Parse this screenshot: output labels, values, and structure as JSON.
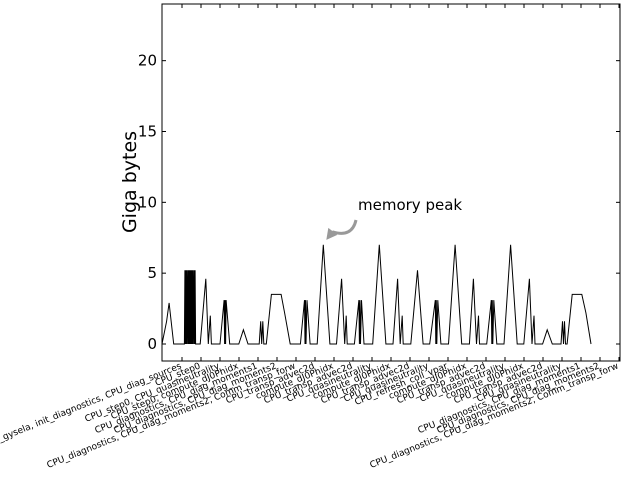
{
  "chart_data": {
    "type": "line",
    "title": "",
    "xlabel": "",
    "ylabel": "Giga bytes",
    "ylim": [
      -1.2,
      24
    ],
    "xlim": [
      0,
      45
    ],
    "yticks": [
      0,
      5,
      10,
      15,
      20
    ],
    "grid": false,
    "legend": "none",
    "color": "#000000",
    "series": [
      {
        "values": [
          [
            0.0,
            0.0
          ],
          [
            0.45,
            1.6
          ],
          [
            0.7,
            2.9
          ],
          [
            1.15,
            0.0
          ],
          [
            2.2,
            0.0
          ],
          [
            2.25,
            5.2
          ],
          [
            2.3,
            0.0
          ],
          [
            2.35,
            5.2
          ],
          [
            2.4,
            0.0
          ],
          [
            2.45,
            5.2
          ],
          [
            2.5,
            0.0
          ],
          [
            2.55,
            5.2
          ],
          [
            2.6,
            0.0
          ],
          [
            2.65,
            5.2
          ],
          [
            2.7,
            0.0
          ],
          [
            2.75,
            5.2
          ],
          [
            2.8,
            0.0
          ],
          [
            2.85,
            5.2
          ],
          [
            2.9,
            0.0
          ],
          [
            2.95,
            5.2
          ],
          [
            3.0,
            0.0
          ],
          [
            3.05,
            5.2
          ],
          [
            3.1,
            0.0
          ],
          [
            3.15,
            5.2
          ],
          [
            3.2,
            0.0
          ],
          [
            3.25,
            5.2
          ],
          [
            3.3,
            0.0
          ],
          [
            3.75,
            0.0
          ],
          [
            4.3,
            4.6
          ],
          [
            4.55,
            0.0
          ],
          [
            4.75,
            2.0
          ],
          [
            4.85,
            0.0
          ],
          [
            5.7,
            0.0
          ],
          [
            6.1,
            3.1
          ],
          [
            6.15,
            0.0
          ],
          [
            6.2,
            3.1
          ],
          [
            6.25,
            0.0
          ],
          [
            6.3,
            3.1
          ],
          [
            6.65,
            0.0
          ],
          [
            7.55,
            0.0
          ],
          [
            8.0,
            1.0
          ],
          [
            8.45,
            0.0
          ],
          [
            9.55,
            0.0
          ],
          [
            9.7,
            1.6
          ],
          [
            9.8,
            0.0
          ],
          [
            9.9,
            1.6
          ],
          [
            10.0,
            0.0
          ],
          [
            10.25,
            0.0
          ],
          [
            10.75,
            3.5
          ],
          [
            11.7,
            3.5
          ],
          [
            12.05,
            2.2
          ],
          [
            12.6,
            0.0
          ],
          [
            13.6,
            0.0
          ],
          [
            14.0,
            3.1
          ],
          [
            14.05,
            0.0
          ],
          [
            14.1,
            3.1
          ],
          [
            14.15,
            0.0
          ],
          [
            14.25,
            3.1
          ],
          [
            14.55,
            0.0
          ],
          [
            15.25,
            0.0
          ],
          [
            15.85,
            7.0
          ],
          [
            16.5,
            0.0
          ],
          [
            17.15,
            0.0
          ],
          [
            17.65,
            4.6
          ],
          [
            17.95,
            0.0
          ],
          [
            18.1,
            2.0
          ],
          [
            18.2,
            0.0
          ],
          [
            18.9,
            0.0
          ],
          [
            19.35,
            3.1
          ],
          [
            19.4,
            0.0
          ],
          [
            19.45,
            3.1
          ],
          [
            19.5,
            0.0
          ],
          [
            19.6,
            3.1
          ],
          [
            19.85,
            0.0
          ],
          [
            20.7,
            0.0
          ],
          [
            21.35,
            7.0
          ],
          [
            22.0,
            0.0
          ],
          [
            22.7,
            0.0
          ],
          [
            23.15,
            4.6
          ],
          [
            23.4,
            0.0
          ],
          [
            23.6,
            2.0
          ],
          [
            23.7,
            0.0
          ],
          [
            24.45,
            0.0
          ],
          [
            25.1,
            5.2
          ],
          [
            25.65,
            0.0
          ],
          [
            26.3,
            0.0
          ],
          [
            26.85,
            3.1
          ],
          [
            26.9,
            0.0
          ],
          [
            26.95,
            3.1
          ],
          [
            27.0,
            0.0
          ],
          [
            27.1,
            3.1
          ],
          [
            27.4,
            0.0
          ],
          [
            28.15,
            0.0
          ],
          [
            28.8,
            7.0
          ],
          [
            29.45,
            0.0
          ],
          [
            30.2,
            0.0
          ],
          [
            30.6,
            4.6
          ],
          [
            30.9,
            0.0
          ],
          [
            31.1,
            2.0
          ],
          [
            31.2,
            0.0
          ],
          [
            31.9,
            0.0
          ],
          [
            32.35,
            3.1
          ],
          [
            32.4,
            0.0
          ],
          [
            32.45,
            3.1
          ],
          [
            32.5,
            0.0
          ],
          [
            32.6,
            3.1
          ],
          [
            32.9,
            0.0
          ],
          [
            33.6,
            0.0
          ],
          [
            34.25,
            7.0
          ],
          [
            34.9,
            0.0
          ],
          [
            35.55,
            0.0
          ],
          [
            36.1,
            4.6
          ],
          [
            36.35,
            0.0
          ],
          [
            36.55,
            2.0
          ],
          [
            36.65,
            0.0
          ],
          [
            37.4,
            0.0
          ],
          [
            37.85,
            1.0
          ],
          [
            38.35,
            0.0
          ],
          [
            39.2,
            0.0
          ],
          [
            39.35,
            1.6
          ],
          [
            39.45,
            0.0
          ],
          [
            39.55,
            1.6
          ],
          [
            39.65,
            0.0
          ],
          [
            39.8,
            0.0
          ],
          [
            40.3,
            3.5
          ],
          [
            41.25,
            3.5
          ],
          [
            41.65,
            2.2
          ],
          [
            42.15,
            0.0
          ]
        ]
      }
    ],
    "x_tick_labels": [
      "Init_gysela, init_diagnostics, CPU_diag_sources",
      "CPU_step0",
      "CPU_step0, CPU_quasineutrality",
      "CPU_step0, compute_dJ0Phidx",
      "CPU_diagnostics, CPU_diag_moments1",
      "CPU_diagnostics, CPU_diag_moments2",
      "CPU_diagnostics, CPU_diag_moments2, Comm_transp_forw",
      "CPU_transp_advec2d",
      "compute_dJ0Phidx",
      "CPU_transp_advec2d",
      "CPU_quasineutrality",
      "compute_dJ0Phidx",
      "CPU_transp_advec2d",
      "CPU_quasineutrality",
      "CPU_refresh_coll_vpar",
      "compute_dJ0Phidx",
      "CPU_transp_advec2d",
      "CPU_quasineutrality",
      "compute_dJ0Phidx",
      "CPU_transp_advec2d",
      "CPU_quasineutrality",
      "CPU_diagnostics, CPU_diag_moments1",
      "CPU_diagnostics, CPU_diag_moments2",
      "CPU_diagnostics, CPU_diag_moments2, Comm_transp_forw"
    ],
    "annotations": [
      {
        "text": "memory peak",
        "x": 15.85,
        "y": 7.0
      }
    ]
  }
}
